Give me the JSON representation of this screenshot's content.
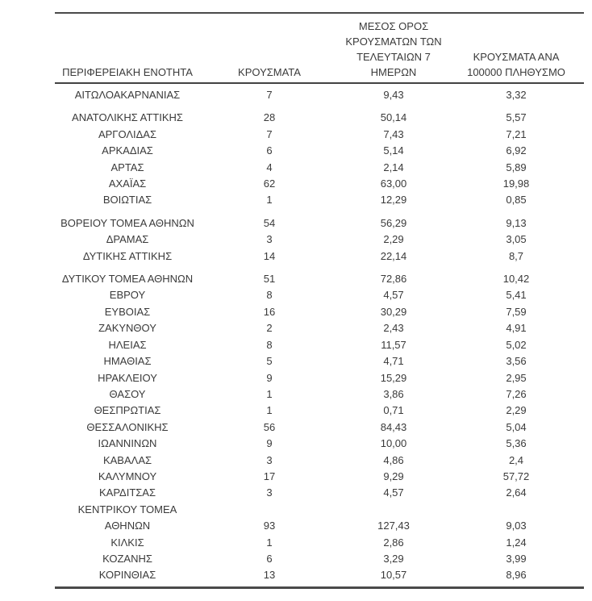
{
  "table": {
    "headers": {
      "region": "ΠΕΡΙΦΕΡΕΙΑΚΗ ΕΝΟΤΗΤΑ",
      "cases": "ΚΡΟΥΣΜΑΤΑ",
      "avg7": "ΜΕΣΟΣ ΟΡΟΣ\nΚΡΟΥΣΜΑΤΩΝ ΤΩΝ\nΤΕΛΕΥΤΑΙΩΝ 7\nΗΜΕΡΩΝ",
      "per100k": "ΚΡΟΥΣΜΑΤΑ ΑΝΑ\n100000 ΠΛΗΘΥΣΜΟ"
    },
    "rows": [
      {
        "name": "ΑΙΤΩΛΟΑΚΑΡΝΑΝΙΑΣ",
        "cases": "7",
        "avg7": "9,43",
        "per100k": "3,32"
      },
      {
        "name": "ΑΝΑΤΟΛΙΚΗΣ ΑΤΤΙΚΗΣ",
        "cases": "28",
        "avg7": "50,14",
        "per100k": "5,57",
        "gap_before": true
      },
      {
        "name": "ΑΡΓΟΛΙΔΑΣ",
        "cases": "7",
        "avg7": "7,43",
        "per100k": "7,21"
      },
      {
        "name": "ΑΡΚΑΔΙΑΣ",
        "cases": "6",
        "avg7": "5,14",
        "per100k": "6,92"
      },
      {
        "name": "ΑΡΤΑΣ",
        "cases": "4",
        "avg7": "2,14",
        "per100k": "5,89"
      },
      {
        "name": "ΑΧΑΪΑΣ",
        "cases": "62",
        "avg7": "63,00",
        "per100k": "19,98"
      },
      {
        "name": "ΒΟΙΩΤΙΑΣ",
        "cases": "1",
        "avg7": "12,29",
        "per100k": "0,85"
      },
      {
        "name": "ΒΟΡΕΙΟΥ ΤΟΜΕΑ ΑΘΗΝΩΝ",
        "cases": "54",
        "avg7": "56,29",
        "per100k": "9,13",
        "gap_before": true
      },
      {
        "name": "ΔΡΑΜΑΣ",
        "cases": "3",
        "avg7": "2,29",
        "per100k": "3,05"
      },
      {
        "name": "ΔΥΤΙΚΗΣ ΑΤΤΙΚΗΣ",
        "cases": "14",
        "avg7": "22,14",
        "per100k": "8,7"
      },
      {
        "name": "ΔΥΤΙΚΟΥ ΤΟΜΕΑ ΑΘΗΝΩΝ",
        "cases": "51",
        "avg7": "72,86",
        "per100k": "10,42",
        "gap_before": true
      },
      {
        "name": "ΕΒΡΟΥ",
        "cases": "8",
        "avg7": "4,57",
        "per100k": "5,41"
      },
      {
        "name": "ΕΥΒΟΙΑΣ",
        "cases": "16",
        "avg7": "30,29",
        "per100k": "7,59"
      },
      {
        "name": "ΖΑΚΥΝΘΟΥ",
        "cases": "2",
        "avg7": "2,43",
        "per100k": "4,91"
      },
      {
        "name": "ΗΛΕΙΑΣ",
        "cases": "8",
        "avg7": "11,57",
        "per100k": "5,02"
      },
      {
        "name": "ΗΜΑΘΙΑΣ",
        "cases": "5",
        "avg7": "4,71",
        "per100k": "3,56"
      },
      {
        "name": "ΗΡΑΚΛΕΙΟΥ",
        "cases": "9",
        "avg7": "15,29",
        "per100k": "2,95"
      },
      {
        "name": "ΘΑΣΟΥ",
        "cases": "1",
        "avg7": "3,86",
        "per100k": "7,26"
      },
      {
        "name": "ΘΕΣΠΡΩΤΙΑΣ",
        "cases": "1",
        "avg7": "0,71",
        "per100k": "2,29"
      },
      {
        "name": "ΘΕΣΣΑΛΟΝΙΚΗΣ",
        "cases": "56",
        "avg7": "84,43",
        "per100k": "5,04"
      },
      {
        "name": "ΙΩΑΝΝΙΝΩΝ",
        "cases": "9",
        "avg7": "10,00",
        "per100k": "5,36"
      },
      {
        "name": "ΚΑΒΑΛΑΣ",
        "cases": "3",
        "avg7": "4,86",
        "per100k": "2,4"
      },
      {
        "name": "ΚΑΛΥΜΝΟΥ",
        "cases": "17",
        "avg7": "9,29",
        "per100k": "57,72"
      },
      {
        "name": "ΚΑΡΔΙΤΣΑΣ",
        "cases": "3",
        "avg7": "4,57",
        "per100k": "2,64"
      },
      {
        "name": "ΚΕΝΤΡΙΚΟΥ ΤΟΜΕΑ\nΑΘΗΝΩΝ",
        "cases": "93",
        "avg7": "127,43",
        "per100k": "9,03"
      },
      {
        "name": "ΚΙΛΚΙΣ",
        "cases": "1",
        "avg7": "2,86",
        "per100k": "1,24"
      },
      {
        "name": "ΚΟΖΑΝΗΣ",
        "cases": "6",
        "avg7": "3,29",
        "per100k": "3,99"
      },
      {
        "name": "ΚΟΡΙΝΘΙΑΣ",
        "cases": "13",
        "avg7": "10,57",
        "per100k": "8,96"
      }
    ],
    "colors": {
      "text": "#3a3a3a",
      "rule": "#4a4a4a",
      "background": "#ffffff"
    }
  }
}
